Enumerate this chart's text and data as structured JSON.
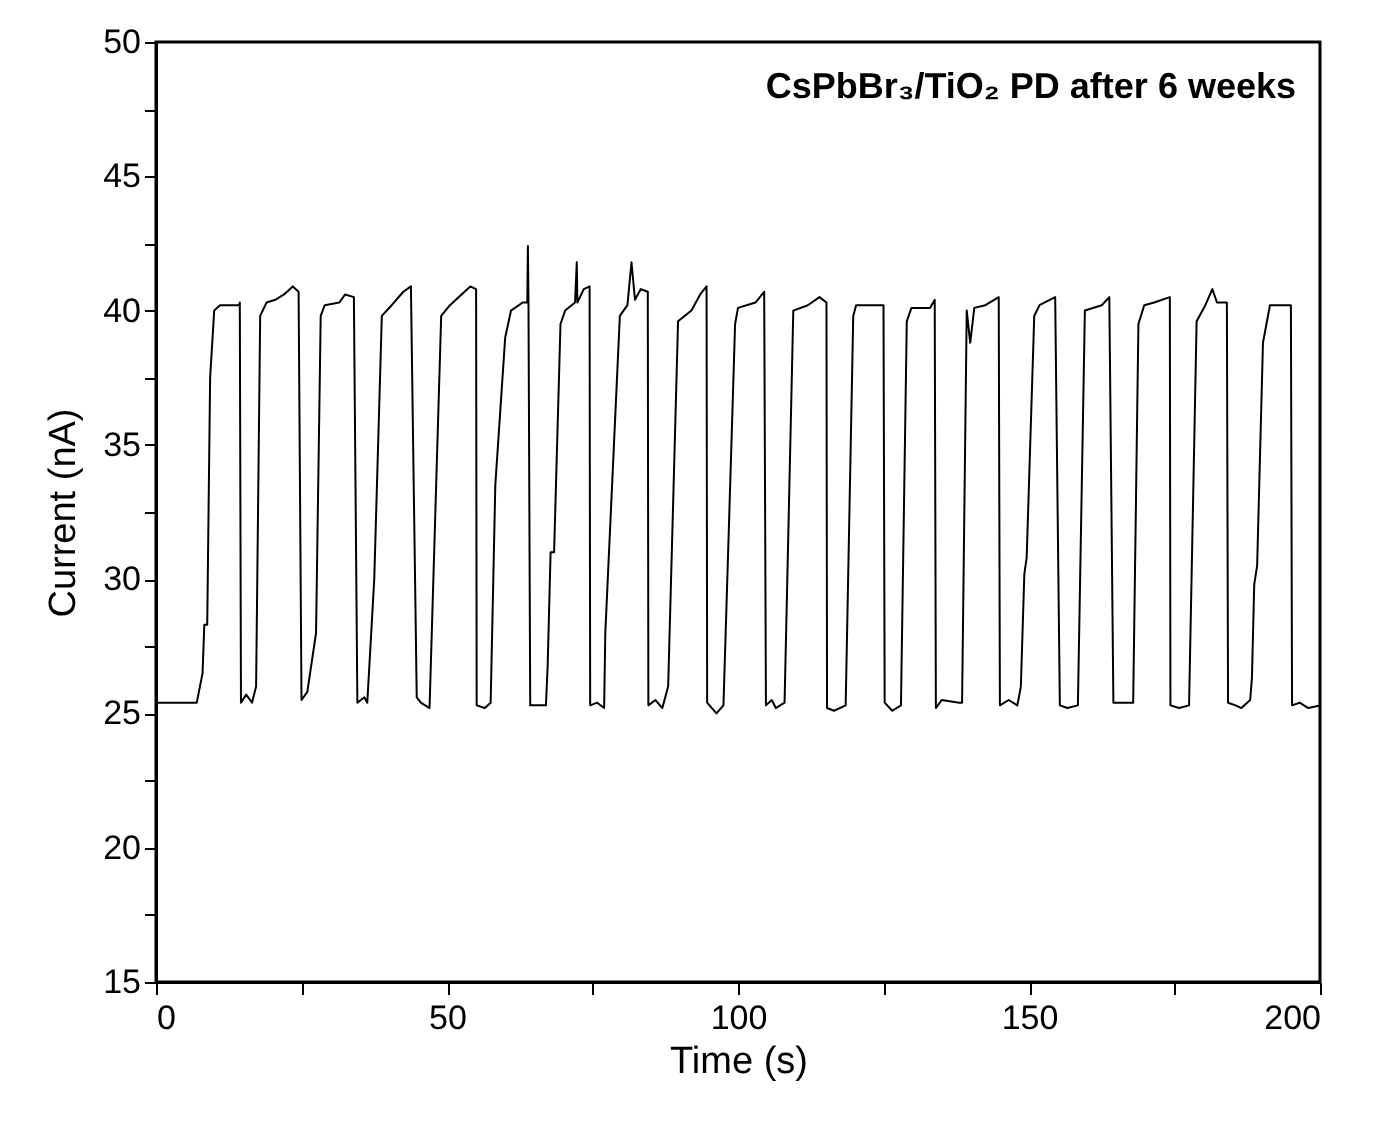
{
  "chart_data": {
    "type": "line",
    "title": "CsPbBr₃/TiO₂ PD after 6 weeks",
    "xlabel": "Time (s)",
    "ylabel": "Current (nA)",
    "xlim": [
      0,
      200
    ],
    "ylim": [
      15,
      50
    ],
    "xticks": [
      0,
      {
        "value": 25,
        "label": null
      },
      50,
      {
        "value": 75,
        "label": null
      },
      100,
      {
        "value": 125,
        "label": null
      },
      150,
      {
        "value": 175,
        "label": null
      },
      200
    ],
    "yticks": [
      15,
      {
        "value": 17.5,
        "label": null
      },
      20,
      {
        "value": 22.5,
        "label": null
      },
      25,
      {
        "value": 27.5,
        "label": null
      },
      30,
      {
        "value": 32.5,
        "label": null
      },
      35,
      {
        "value": 37.5,
        "label": null
      },
      40,
      {
        "value": 42.5,
        "label": null
      },
      45,
      {
        "value": 47.5,
        "label": null
      },
      50
    ],
    "grid": false,
    "marker": "none",
    "line_style": "solid",
    "x": [
      0,
      7,
      8,
      8.3,
      8.8,
      9.3,
      10,
      11,
      14.3,
      14.4,
      14.6,
      15.5,
      16.5,
      17.2,
      17.9,
      19,
      20.5,
      22,
      23.5,
      24.5,
      25,
      26,
      27.5,
      28.3,
      29,
      31.5,
      32.5,
      34,
      34.6,
      35.8,
      36.3,
      37.5,
      38.8,
      40.5,
      42.5,
      43.8,
      44.8,
      45.5,
      47,
      49,
      50.5,
      52.5,
      54,
      55,
      55.1,
      56.5,
      57.5,
      58.3,
      60,
      61,
      63,
      63.8,
      63.9,
      64,
      64.3,
      65.5,
      67,
      67.3,
      67.8,
      68.4,
      69.5,
      70.3,
      72,
      72.3,
      72.4,
      73.5,
      74.5,
      74.6,
      75.8,
      77,
      77.2,
      79.7,
      81,
      81.7,
      82.3,
      83.3,
      84.5,
      84.6,
      85.8,
      87,
      88,
      89.7,
      92,
      93.5,
      94.6,
      94.7,
      96.3,
      97.5,
      99.5,
      100,
      103,
      104.5,
      104.8,
      105.8,
      106.5,
      108,
      109.5,
      112,
      114,
      115.2,
      115.3,
      116.5,
      118.5,
      119.8,
      120.3,
      125,
      125.2,
      126.5,
      128,
      129,
      129.8,
      133,
      133.8,
      134,
      135,
      138,
      138.5,
      139.3,
      139.9,
      140.6,
      142.5,
      144.8,
      145,
      146.5,
      148,
      148.6,
      149.2,
      149.6,
      150.9,
      151.8,
      154.5,
      155.3,
      156.6,
      158.4,
      159.6,
      162.5,
      163.8,
      164.5,
      167.9,
      168.8,
      169.8,
      171.5,
      174.2,
      174.3,
      175.8,
      177.5,
      178.8,
      180.3,
      181.5,
      182.3,
      184,
      184.2,
      185.5,
      186.5,
      188,
      188.3,
      188.7,
      189.2,
      190.2,
      191.4,
      195,
      195.2,
      196.5,
      198,
      200
    ],
    "series": [
      {
        "color": "#000000",
        "values": [
          25.4,
          25.4,
          26.5,
          28.3,
          28.3,
          37.5,
          40.0,
          40.2,
          40.2,
          40.3,
          25.4,
          25.7,
          25.4,
          26.0,
          39.8,
          40.3,
          40.4,
          40.6,
          40.9,
          40.7,
          25.5,
          25.8,
          28.0,
          39.8,
          40.2,
          40.3,
          40.6,
          40.5,
          25.4,
          25.6,
          25.4,
          30.0,
          39.8,
          40.2,
          40.7,
          40.9,
          25.6,
          25.4,
          25.2,
          39.8,
          40.2,
          40.6,
          40.9,
          40.8,
          25.3,
          25.2,
          25.4,
          33.5,
          39.0,
          40.0,
          40.3,
          40.3,
          42.4,
          40.3,
          25.3,
          25.3,
          25.3,
          26.8,
          31.0,
          31.0,
          39.5,
          40.0,
          40.3,
          41.8,
          40.3,
          40.8,
          40.9,
          25.3,
          25.4,
          25.2,
          28.0,
          39.8,
          40.2,
          41.8,
          40.4,
          40.8,
          40.7,
          25.3,
          25.5,
          25.2,
          26.0,
          39.6,
          40.0,
          40.6,
          40.9,
          25.4,
          25.0,
          25.3,
          39.5,
          40.1,
          40.3,
          40.7,
          25.3,
          25.5,
          25.2,
          25.4,
          40.0,
          40.2,
          40.5,
          40.3,
          25.2,
          25.1,
          25.3,
          39.8,
          40.2,
          40.2,
          25.4,
          25.1,
          25.3,
          39.6,
          40.1,
          40.1,
          40.4,
          25.2,
          25.5,
          25.4,
          25.4,
          40.0,
          38.8,
          40.1,
          40.2,
          40.5,
          25.3,
          25.5,
          25.3,
          26.0,
          30.2,
          30.8,
          39.8,
          40.2,
          40.5,
          25.3,
          25.2,
          25.3,
          40.0,
          40.2,
          40.5,
          25.4,
          25.4,
          39.5,
          40.2,
          40.3,
          40.5,
          25.3,
          25.2,
          25.3,
          39.6,
          40.2,
          40.8,
          40.3,
          40.3,
          25.4,
          25.3,
          25.2,
          25.5,
          26.3,
          29.8,
          30.5,
          38.8,
          40.2,
          40.2,
          25.3,
          25.4,
          25.2,
          25.3
        ]
      }
    ]
  }
}
